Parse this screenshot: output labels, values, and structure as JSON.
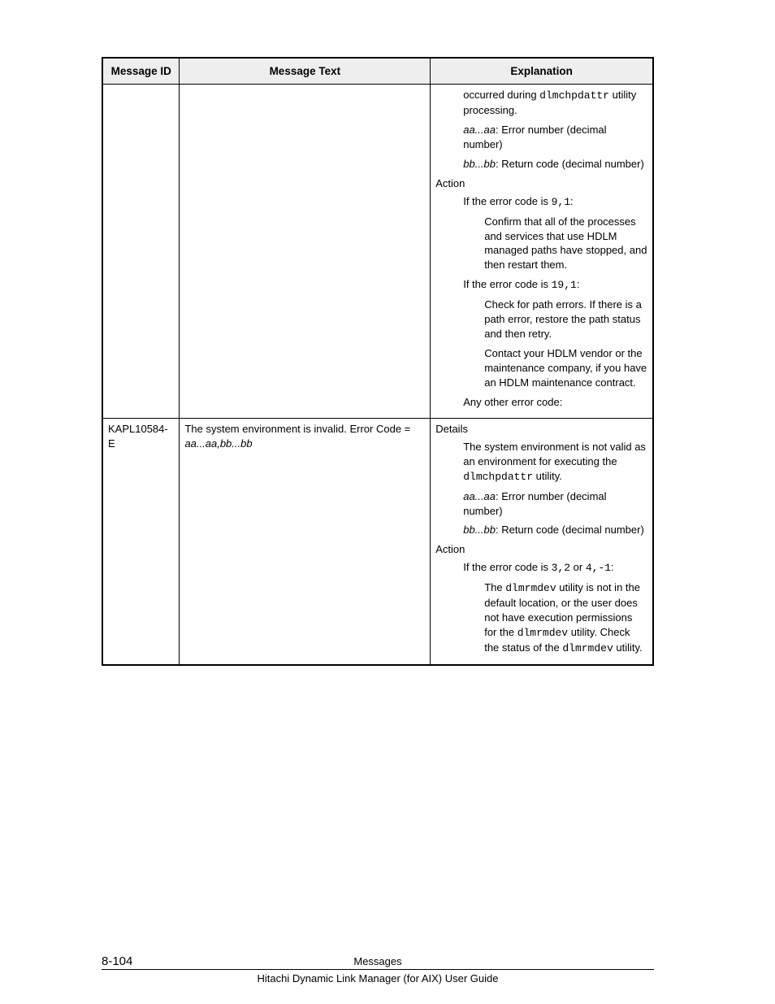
{
  "table": {
    "headers": {
      "id": "Message ID",
      "text": "Message Text",
      "exp": "Explanation"
    },
    "row1": {
      "exp": {
        "d1a": "occurred during ",
        "d1code": "dlmchpdattr",
        "d1b": " utility processing.",
        "d2a_it": "aa...aa",
        "d2b": ": Error number (decimal number)",
        "d3a_it": "bb...bb",
        "d3b": ": Return code (decimal number)",
        "actionLabel": "Action",
        "a1a": "If the error code is ",
        "a1code": "9,1",
        "a1b": ":",
        "a1deep": "Confirm that all of the processes and services that use HDLM managed paths have stopped, and then restart them.",
        "a2a": "If the error code is ",
        "a2code": "19,1",
        "a2b": ":",
        "a2deep1": "Check for path errors. If there is a path error, restore the path status and then retry.",
        "a2deep2": "Contact your HDLM vendor or the maintenance company, if you have an HDLM maintenance contract.",
        "a3": "Any other error code:"
      }
    },
    "row2": {
      "id": "KAPL10584-E",
      "text_a": "The system environment is invalid. Error Code = ",
      "text_it": "aa...aa,bb...bb",
      "exp": {
        "detailsLabel": "Details",
        "d1a": "The system environment is not valid as an environment for executing the ",
        "d1code": "dlmchpdattr",
        "d1b": " utility.",
        "d2a_it": "aa...aa",
        "d2b": ": Error number (decimal number)",
        "d3a_it": "bb...bb",
        "d3b": ": Return code (decimal number)",
        "actionLabel": "Action",
        "a1a": "If the error code is ",
        "a1code1": "3,2",
        "a1mid": " or ",
        "a1code2": "4,-1",
        "a1b": ":",
        "a1deep_a": "The ",
        "a1deep_code1": "dlmrmdev",
        "a1deep_b": " utility is not in the default location, or the user does not have execution permissions for the ",
        "a1deep_code2": "dlmrmdev",
        "a1deep_c": " utility. Check the status of the ",
        "a1deep_code3": "dlmrmdev",
        "a1deep_d": " utility."
      }
    }
  },
  "footer": {
    "pageNumber": "8-104",
    "title1": "Messages",
    "title2": "Hitachi Dynamic Link Manager (for AIX) User Guide"
  }
}
